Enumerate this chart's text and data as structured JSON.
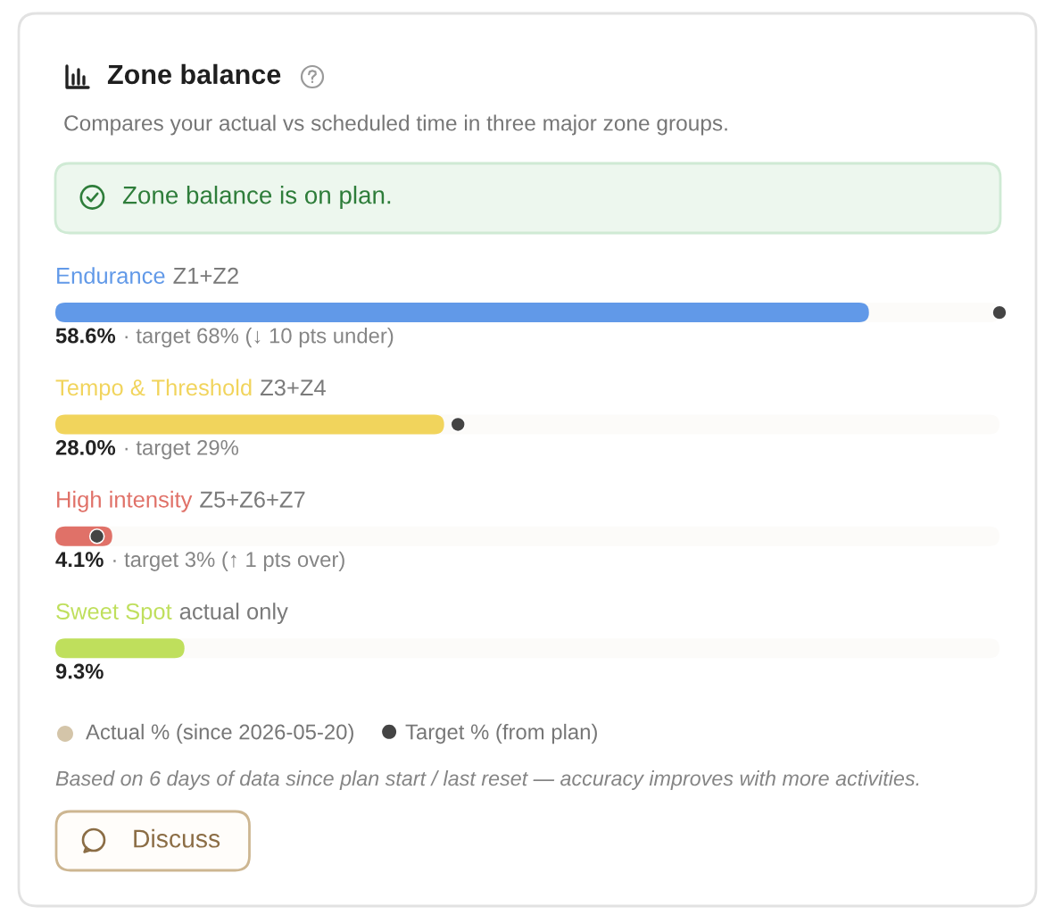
{
  "chart_data": {
    "type": "bar",
    "orientation": "horizontal",
    "title": "Zone balance",
    "subtitle": "Compares your actual vs scheduled time in three major zone groups.",
    "categories": [
      "Endurance",
      "Tempo & Threshold",
      "High intensity",
      "Sweet Spot"
    ],
    "series": [
      {
        "colors": [
          "#6199e8",
          "#f1d45c",
          "#e07168",
          "#bfdf5c"
        ],
        "values": [
          58.6,
          28.0,
          4.1,
          9.3
        ],
        "value_labels": [
          "58.6%",
          "28.0%",
          "4.1%",
          "9.3%"
        ]
      },
      {
        "name": "Target % (from plan)",
        "type": "scatter",
        "marker": "circle",
        "color": "#444444",
        "values": [
          68,
          29,
          3,
          null
        ]
      }
    ],
    "tick_labels": "y",
    "legend": "bottom",
    "annotations": [
      "Zone balance is on plan.",
      "Z1+Z2",
      "Z3+Z4",
      "Z5+Z6+Z7",
      "actual only",
      "· target 68% (↓ 10 pts under)",
      "· target 29%",
      "· target 3% (↑ 1 pts over)",
      "Actual % (since 2026-05-20)",
      "Based on 6 days of data since plan start / last reset — accuracy improves with more activities.",
      "Discuss"
    ]
  }
}
